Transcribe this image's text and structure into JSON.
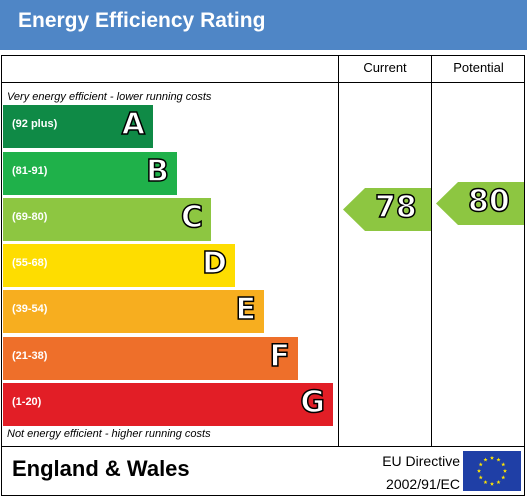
{
  "header": {
    "title": "Energy Efficiency Rating"
  },
  "columns": {
    "current": "Current",
    "potential": "Potential"
  },
  "notes": {
    "top": "Very energy efficient - lower running costs",
    "bottom": "Not energy efficient - higher running costs"
  },
  "footer": {
    "region": "England & Wales",
    "directive_line1": "EU Directive",
    "directive_line2": "2002/91/EC",
    "flag_icon": "eu-flag-icon"
  },
  "chart_data": {
    "type": "bar",
    "title": "Energy Efficiency Rating",
    "categories": [
      "A",
      "B",
      "C",
      "D",
      "E",
      "F",
      "G"
    ],
    "ranges": [
      "(92 plus)",
      "(81-91)",
      "(69-80)",
      "(55-68)",
      "(39-54)",
      "(21-38)",
      "(1-20)"
    ],
    "colors": [
      "#0f8a46",
      "#1fb14a",
      "#8dc641",
      "#fedd00",
      "#f7ae1f",
      "#ee6f2a",
      "#e21e26"
    ],
    "ratings": {
      "current": {
        "value": 78,
        "band": "C",
        "color": "#8dc641"
      },
      "potential": {
        "value": 80,
        "band": "C",
        "color": "#8dc641"
      }
    }
  }
}
